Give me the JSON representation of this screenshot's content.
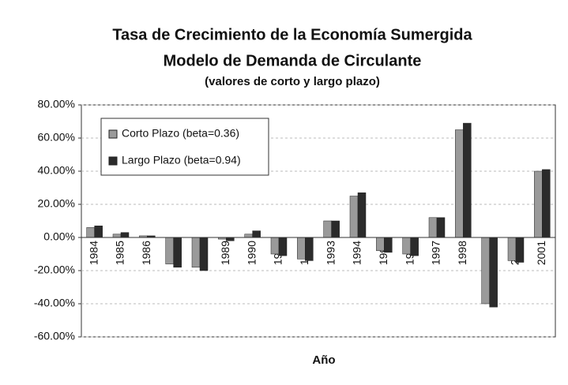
{
  "chart_data": {
    "type": "bar",
    "title": "Tasa de Crecimiento de la Economía Sumergida",
    "subtitle": "Modelo de Demanda de Circulante",
    "note": "(valores de corto y largo plazo)",
    "x_label": "Año",
    "categories": [
      "1984",
      "1985",
      "1986",
      "1987",
      "1988",
      "1989",
      "1990",
      "1991",
      "1992",
      "1993",
      "1994",
      "1995",
      "1996",
      "1997",
      "1998",
      "1999",
      "2000",
      "2001"
    ],
    "series": [
      {
        "name": "Corto Plazo (beta=0.36)",
        "color": "#9a9a9a",
        "values": [
          6,
          2,
          1,
          -16,
          -18,
          -1,
          2,
          -10,
          -13,
          10,
          25,
          -8,
          -10,
          12,
          65,
          -40,
          -14,
          40
        ]
      },
      {
        "name": "Largo Plazo (beta=0.94)",
        "color": "#2b2b2b",
        "values": [
          7,
          3,
          1,
          -18,
          -20,
          -2,
          4,
          -11,
          -14,
          10,
          27,
          -9,
          -11,
          12,
          69,
          -42,
          -15,
          41
        ]
      }
    ],
    "ylim": [
      -60,
      80
    ],
    "yticks": [
      {
        "value": -60,
        "label": "-60.00%"
      },
      {
        "value": -40,
        "label": "-40.00%"
      },
      {
        "value": -20,
        "label": "-20.00%"
      },
      {
        "value": 0,
        "label": "0.00%"
      },
      {
        "value": 20,
        "label": "20.00%"
      },
      {
        "value": 40,
        "label": "40.00%"
      },
      {
        "value": 60,
        "label": "60.00%"
      },
      {
        "value": 80,
        "label": "80.00%"
      }
    ],
    "grid": true,
    "legend": "top-left"
  }
}
